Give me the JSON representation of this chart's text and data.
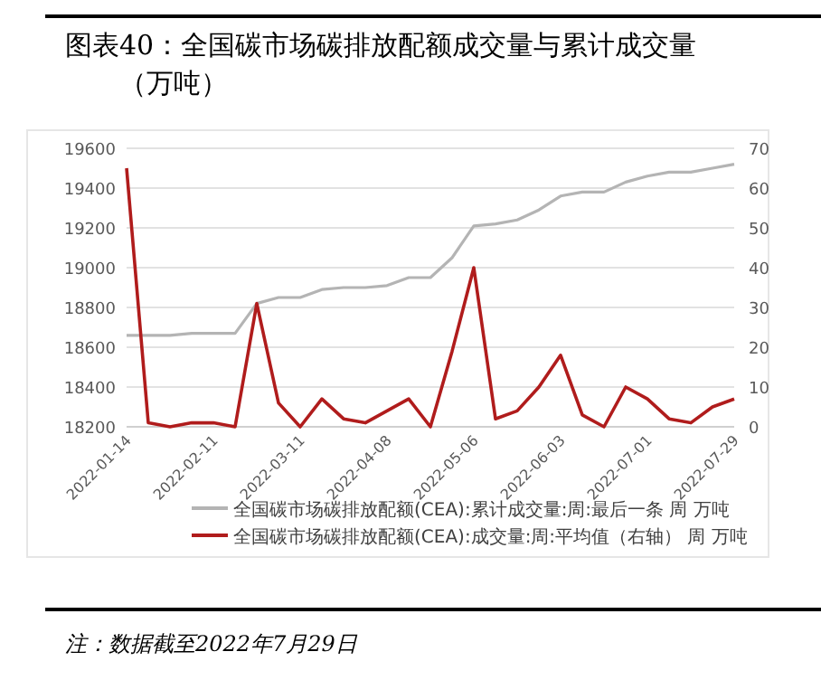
{
  "chart_data": {
    "type": "line",
    "title": "图表40：全国碳市场碳排放配额成交量与累计成交量（万吨）",
    "x": [
      "2022-01-14",
      "2022-01-21",
      "2022-01-28",
      "2022-02-04",
      "2022-02-11",
      "2022-02-18",
      "2022-02-25",
      "2022-03-04",
      "2022-03-11",
      "2022-03-18",
      "2022-03-25",
      "2022-04-01",
      "2022-04-08",
      "2022-04-15",
      "2022-04-22",
      "2022-04-29",
      "2022-05-06",
      "2022-05-13",
      "2022-05-20",
      "2022-05-27",
      "2022-06-03",
      "2022-06-10",
      "2022-06-17",
      "2022-06-24",
      "2022-07-01",
      "2022-07-08",
      "2022-07-15",
      "2022-07-22",
      "2022-07-29"
    ],
    "xlim": [
      "2022-01-14",
      "2022-07-29"
    ],
    "xticks": [
      "2022-01-14",
      "2022-02-11",
      "2022-03-11",
      "2022-04-08",
      "2022-05-06",
      "2022-06-03",
      "2022-07-01",
      "2022-07-29"
    ],
    "ylim": [
      18200,
      19600
    ],
    "yticks": [
      18200,
      18400,
      18600,
      18800,
      19000,
      19200,
      19400,
      19600
    ],
    "y2lim": [
      0,
      70
    ],
    "y2ticks": [
      0,
      10,
      20,
      30,
      40,
      50,
      60,
      70
    ],
    "series": [
      {
        "name": "全国碳市场碳排放配额(CEA):累计成交量:周:最后一条 周 万吨",
        "color": "#b4b4b4",
        "values": [
          18660,
          18660,
          18660,
          18670,
          18670,
          18670,
          18820,
          18850,
          18850,
          18890,
          18900,
          18900,
          18910,
          18950,
          18950,
          19050,
          19210,
          19220,
          19240,
          19290,
          19360,
          19380,
          19380,
          19430,
          19460,
          19480,
          19480,
          19500,
          19520
        ]
      },
      {
        "name": "全国碳市场碳排放配额(CEA):成交量:周:平均值（右轴） 周 万吨",
        "color": "#b01c1c",
        "axis": "y2",
        "values": [
          65,
          1,
          0,
          1,
          1,
          0,
          31,
          6,
          0,
          7,
          2,
          1,
          4,
          7,
          0,
          19,
          40,
          2,
          4,
          10,
          18,
          3,
          0,
          10,
          7,
          2,
          1,
          5,
          7
        ]
      }
    ],
    "grid": "y",
    "legend": "bottom",
    "annotations": [
      "注：数据截至2022年7月29日"
    ]
  }
}
